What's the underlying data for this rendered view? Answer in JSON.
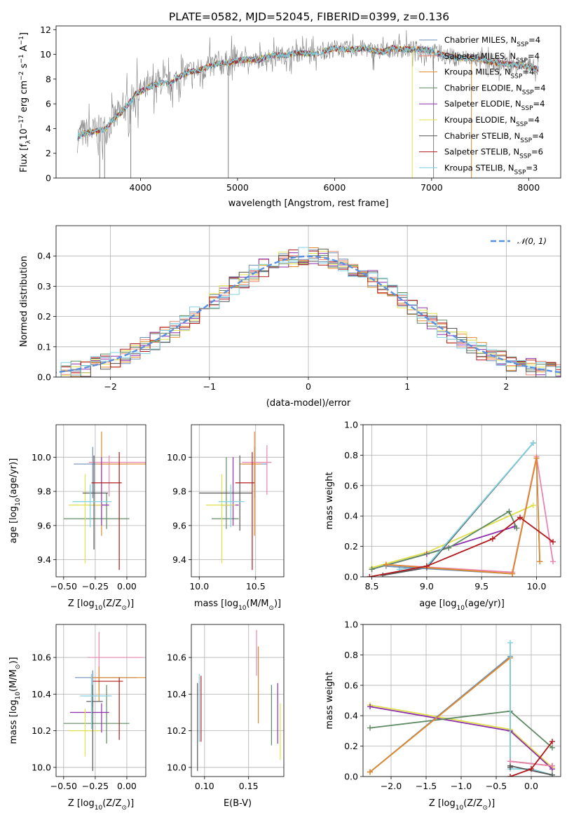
{
  "figure": {
    "title": "PLATE=0582, MJD=52045, FIBERID=0399, z=0.136"
  },
  "colors": {
    "Chabrier MILES": "#6b8fb9",
    "Salpeter MILES": "#ee8873",
    "Kroupa MILES": "#e0892a",
    "Chabrier ELODIE": "#5e8a63",
    "Salpeter ELODIE": "#8d2fab",
    "Kroupa ELODIE": "#dfe04a",
    "Chabrier STELIB": "#555555",
    "Salpeter STELIB": "#b2181b",
    "Kroupa STELIB": "#7fd0e0",
    "pink": "#e884b0"
  },
  "chart_data": [
    {
      "id": "spectrum",
      "type": "line",
      "title": "PLATE=0582, MJD=52045, FIBERID=0399, z=0.136",
      "xlabel": "wavelength [Angstrom, rest frame]",
      "ylabel_main": "Flux [f",
      "ylabel_rest": "10",
      "ylabel_exp": "−17",
      "ylabel_tail": " erg cm",
      "ylabel_exp2": "−2",
      "ylabel_tail2": " s",
      "ylabel_exp3": "−1",
      "ylabel_tail3": " A",
      "ylabel_exp4": "−1",
      "ylabel_end": "]",
      "xlim": [
        3130,
        8330
      ],
      "ylim": [
        0,
        12.3
      ],
      "xticks": [
        "4000",
        "5000",
        "6000",
        "7000",
        "8000"
      ],
      "yticks": [
        "0",
        "2",
        "4",
        "6",
        "8",
        "10",
        "12"
      ],
      "legend_position": "right",
      "legend": [
        {
          "name": "Chabrier MILES",
          "nssp": "4"
        },
        {
          "name": "Salpeter MILES",
          "nssp": "4"
        },
        {
          "name": "Kroupa MILES",
          "nssp": "4"
        },
        {
          "name": "Chabrier ELODIE",
          "nssp": "4"
        },
        {
          "name": "Salpeter ELODIE",
          "nssp": "4"
        },
        {
          "name": "Kroupa ELODIE",
          "nssp": "4"
        },
        {
          "name": "Chabrier STELIB",
          "nssp": "4"
        },
        {
          "name": "Salpeter STELIB",
          "nssp": "6"
        },
        {
          "name": "Kroupa STELIB",
          "nssp": "3"
        }
      ],
      "model_x": [
        3350,
        3400,
        3500,
        3600,
        3650,
        3700,
        3800,
        3900,
        3950,
        4000,
        4100,
        4200,
        4300,
        4400,
        4500,
        4600,
        4700,
        4800,
        4900,
        5000,
        5100,
        5200,
        5300,
        5400,
        5500,
        5600,
        5700,
        5800,
        5900,
        6000,
        6100,
        6200,
        6300,
        6400,
        6500,
        6600,
        6700,
        6800,
        6900,
        7000,
        7100,
        7200,
        7300,
        7400,
        7500,
        7600,
        7700,
        7800,
        7900,
        8000,
        8100
      ],
      "model_y": [
        3.3,
        3.6,
        3.7,
        3.9,
        4.0,
        4.6,
        5.3,
        6.2,
        6.8,
        7.0,
        7.4,
        7.7,
        7.6,
        8.2,
        8.6,
        8.7,
        9.0,
        9.3,
        9.3,
        9.5,
        9.6,
        9.5,
        9.8,
        10.0,
        9.9,
        10.1,
        10.1,
        10.0,
        10.3,
        10.5,
        10.4,
        10.4,
        10.5,
        10.3,
        10.2,
        10.5,
        10.4,
        10.4,
        10.4,
        10.3,
        10.0,
        9.8,
        9.7,
        9.7,
        9.6,
        9.4,
        9.3,
        9.2,
        9.1,
        9.0,
        8.8
      ],
      "data_sample_step": 5,
      "data_noise": 1.2
    },
    {
      "id": "residuals",
      "type": "step",
      "xlabel": "(data-model)/error",
      "ylabel": "Normed distribution",
      "xlim": [
        -2.55,
        2.55
      ],
      "ylim": [
        0,
        0.5
      ],
      "xticks": [
        "−2",
        "−1",
        "0",
        "1",
        "2"
      ],
      "xtick_values": [
        -2,
        -1,
        0,
        1,
        2
      ],
      "yticks": [
        "0.0",
        "0.1",
        "0.2",
        "0.3",
        "0.4"
      ],
      "ytick_values": [
        0,
        0.1,
        0.2,
        0.3,
        0.4
      ],
      "bin_width": 0.1,
      "legend": "𝒩(0, 1)",
      "gaussian_color": "#5a8fe0"
    },
    {
      "id": "age_vs_Z",
      "type": "errorbar",
      "xlabel": "Z [log",
      "xlabel_sub": "10",
      "xlabel_rest": "(Z/Z",
      "xlabel_end": ")]",
      "ylabel": "age  [log",
      "ylabel_sub": "10",
      "ylabel_rest": "(age/yr)]",
      "xlim": [
        -0.56,
        0.15
      ],
      "ylim": [
        9.3,
        10.19
      ],
      "xticks": [
        "−0.50",
        "−0.25",
        "0.00"
      ],
      "xtick_values": [
        -0.5,
        -0.25,
        0
      ],
      "yticks": [
        "9.4",
        "9.6",
        "9.8",
        "10.0"
      ],
      "ytick_values": [
        9.4,
        9.6,
        9.8,
        10.0
      ],
      "points": [
        {
          "c": "Chabrier MILES",
          "x": -0.27,
          "xe": [
            0.15,
            0.26
          ],
          "y": 9.96,
          "ye": [
            0.2,
            0.1
          ]
        },
        {
          "c": "pink",
          "x": -0.14,
          "xe": [
            0.16,
            0.3
          ],
          "y": 9.97,
          "ye": [
            0.2,
            0.04
          ]
        },
        {
          "c": "Kroupa MILES",
          "x": -0.2,
          "xe": [
            0.04,
            0.35
          ],
          "y": 9.96,
          "ye": [
            0.42,
            0.19
          ]
        },
        {
          "c": "Chabrier ELODIE",
          "x": -0.16,
          "xe": [
            0.34,
            0.18
          ],
          "y": 9.64,
          "ye": [
            0.06,
            0.15
          ]
        },
        {
          "c": "Salpeter ELODIE",
          "x": -0.2,
          "xe": [
            0.1,
            0.06
          ],
          "y": 9.72,
          "ye": [
            0.12,
            0.28
          ]
        },
        {
          "c": "Kroupa ELODIE",
          "x": -0.33,
          "xe": [
            0.13,
            0.13
          ],
          "y": 9.72,
          "ye": [
            0.34,
            0.18
          ]
        },
        {
          "c": "Chabrier STELIB",
          "x": -0.26,
          "xe": [
            0.09,
            0.11
          ],
          "y": 9.79,
          "ye": [
            0.33,
            0.22
          ]
        },
        {
          "c": "Salpeter STELIB",
          "x": -0.06,
          "xe": [
            0.22,
            0.02
          ],
          "y": 9.85,
          "ye": [
            0.51,
            0.18
          ]
        },
        {
          "c": "Kroupa STELIB",
          "x": -0.29,
          "xe": [
            0.14,
            0.17
          ],
          "y": 9.74,
          "ye": [
            0.15,
            0.1
          ]
        }
      ]
    },
    {
      "id": "age_vs_mass",
      "type": "errorbar",
      "xlabel": "mass [log",
      "xlabel_sub": "10",
      "xlabel_rest": "(M/M",
      "xlabel_end": ")]",
      "xlim": [
        9.93,
        10.75
      ],
      "ylim": [
        9.3,
        10.19
      ],
      "xticks": [
        "10.0",
        "10.5"
      ],
      "xtick_values": [
        10.0,
        10.5
      ],
      "yticks": [
        "9.4",
        "9.6",
        "9.8",
        "10.0"
      ],
      "ytick_values": [
        9.4,
        9.6,
        9.8,
        10.0
      ],
      "points": [
        {
          "c": "Chabrier MILES",
          "x": 10.49,
          "xe": [
            0.11,
            0.11
          ],
          "y": 9.96,
          "ye": [
            0.2,
            0.1
          ]
        },
        {
          "c": "pink",
          "x": 10.6,
          "xe": [
            0.22,
            0.04
          ],
          "y": 9.97,
          "ye": [
            0.19,
            0.1
          ]
        },
        {
          "c": "Kroupa MILES",
          "x": 10.49,
          "xe": [
            0.13,
            0.06
          ],
          "y": 9.96,
          "ye": [
            0.42,
            0.19
          ]
        },
        {
          "c": "Chabrier ELODIE",
          "x": 10.24,
          "xe": [
            0.13,
            0.11
          ],
          "y": 9.64,
          "ye": [
            0.06,
            0.36
          ]
        },
        {
          "c": "Salpeter ELODIE",
          "x": 10.3,
          "xe": [
            0.11,
            0.05
          ],
          "y": 9.72,
          "ye": [
            0.12,
            0.28
          ]
        },
        {
          "c": "Kroupa ELODIE",
          "x": 10.2,
          "xe": [
            0.14,
            0.12
          ],
          "y": 9.72,
          "ye": [
            0.34,
            0.18
          ]
        },
        {
          "c": "Chabrier STELIB",
          "x": 10.36,
          "xe": [
            0.36,
            0.11
          ],
          "y": 9.79,
          "ye": [
            0.22,
            0.22
          ]
        },
        {
          "c": "Salpeter STELIB",
          "x": 10.47,
          "xe": [
            0.15,
            0.02
          ],
          "y": 9.85,
          "ye": [
            0.51,
            0.18
          ]
        },
        {
          "c": "Kroupa STELIB",
          "x": 10.28,
          "xe": [
            0.11,
            0.12
          ],
          "y": 9.74,
          "ye": [
            0.15,
            0.1
          ]
        }
      ]
    },
    {
      "id": "weight_vs_age",
      "type": "line",
      "xlabel": "age  [log",
      "xlabel_sub": "10",
      "xlabel_rest": "(age/yr)]",
      "ylabel": "mass weight",
      "xlim": [
        8.42,
        10.22
      ],
      "ylim": [
        0,
        1
      ],
      "xticks": [
        "8.5",
        "9.0",
        "9.5",
        "10.0"
      ],
      "xtick_values": [
        8.5,
        9.0,
        9.5,
        10.0
      ],
      "yticks": [
        "0.0",
        "0.2",
        "0.4",
        "0.6",
        "0.8",
        "1.0"
      ],
      "ytick_values": [
        0,
        0.2,
        0.4,
        0.6,
        0.8,
        1.0
      ],
      "series": [
        {
          "c": "Kroupa ELODIE",
          "x": [
            8.5,
            9.0,
            9.97
          ],
          "y": [
            0.06,
            0.16,
            0.47
          ]
        },
        {
          "c": "Salpeter ELODIE",
          "x": [
            8.5,
            9.0,
            9.8
          ],
          "y": [
            0.05,
            0.15,
            0.33
          ]
        },
        {
          "c": "Chabrier ELODIE",
          "x": [
            8.5,
            9.2,
            9.75,
            9.82
          ],
          "y": [
            0.05,
            0.19,
            0.43,
            0.32
          ]
        },
        {
          "c": "Chabrier STELIB",
          "x": [
            8.6,
            9.0,
            9.97
          ],
          "y": [
            0.01,
            0.06,
            0.88
          ]
        },
        {
          "c": "Kroupa STELIB",
          "x": [
            8.75,
            9.0,
            9.97
          ],
          "y": [
            0.05,
            0.07,
            0.88
          ]
        },
        {
          "c": "Chabrier MILES",
          "x": [
            8.63,
            9.78,
            10.0,
            10.03
          ],
          "y": [
            0.07,
            0.02,
            0.78,
            0.1
          ]
        },
        {
          "c": "pink",
          "x": [
            8.63,
            9.78,
            10.0,
            10.15
          ],
          "y": [
            0.08,
            0.03,
            0.79,
            0.1
          ]
        },
        {
          "c": "Kroupa MILES",
          "x": [
            8.63,
            9.78,
            10.0,
            10.03
          ],
          "y": [
            0.08,
            0.02,
            0.78,
            0.1
          ]
        },
        {
          "c": "Salpeter STELIB",
          "x": [
            8.48,
            9.0,
            9.6,
            9.85,
            10.15
          ],
          "y": [
            0.0,
            0.07,
            0.25,
            0.39,
            0.23
          ]
        }
      ]
    },
    {
      "id": "mass_vs_Z",
      "type": "errorbar",
      "xlabel": "Z [log",
      "xlabel_sub": "10",
      "xlabel_rest": "(Z/Z",
      "xlabel_end": ")]",
      "ylabel": "mass [log",
      "ylabel_sub": "10",
      "ylabel_rest": "(M/M",
      "ylabel_end": ")]",
      "xlim": [
        -0.56,
        0.15
      ],
      "ylim": [
        9.95,
        10.78
      ],
      "xticks": [
        "−0.50",
        "−0.25",
        "0.00"
      ],
      "xtick_values": [
        -0.5,
        -0.25,
        0
      ],
      "yticks": [
        "10.0",
        "10.2",
        "10.4",
        "10.6"
      ],
      "ytick_values": [
        10.0,
        10.2,
        10.4,
        10.6
      ],
      "points": [
        {
          "c": "Chabrier MILES",
          "x": -0.27,
          "xe": [
            0.14,
            0.35
          ],
          "y": 10.49,
          "ye": [
            0.16,
            0.04
          ]
        },
        {
          "c": "pink",
          "x": -0.22,
          "xe": [
            0.09,
            0.35
          ],
          "y": 10.6,
          "ye": [
            0.18,
            0.14
          ]
        },
        {
          "c": "Kroupa MILES",
          "x": -0.22,
          "xe": [
            0.06,
            0.38
          ],
          "y": 10.49,
          "ye": [
            0.13,
            0.06
          ]
        },
        {
          "c": "Chabrier ELODIE",
          "x": -0.16,
          "xe": [
            0.34,
            0.18
          ],
          "y": 10.24,
          "ye": [
            0.11,
            0.21
          ]
        },
        {
          "c": "Salpeter ELODIE",
          "x": -0.2,
          "xe": [
            0.25,
            0.06
          ],
          "y": 10.3,
          "ye": [
            0.11,
            0.05
          ]
        },
        {
          "c": "Kroupa ELODIE",
          "x": -0.33,
          "xe": [
            0.13,
            0.12
          ],
          "y": 10.2,
          "ye": [
            0.14,
            0.12
          ]
        },
        {
          "c": "Chabrier STELIB",
          "x": -0.27,
          "xe": [
            0.05,
            0.08
          ],
          "y": 10.36,
          "ye": [
            0.38,
            0.09
          ]
        },
        {
          "c": "Salpeter STELIB",
          "x": -0.06,
          "xe": [
            0.21,
            0.03
          ],
          "y": 10.47,
          "ye": [
            0.32,
            0.02
          ]
        },
        {
          "c": "Kroupa STELIB",
          "x": -0.28,
          "xe": [
            0.09,
            0.16
          ],
          "y": 10.39,
          "ye": [
            0.18,
            0.12
          ]
        }
      ]
    },
    {
      "id": "mass_vs_ebv",
      "type": "errorbar",
      "xlabel": "E(B-V)",
      "xlim": [
        0.085,
        0.19
      ],
      "ylim": [
        9.95,
        10.78
      ],
      "xticks": [
        "0.10",
        "0.15"
      ],
      "xtick_values": [
        0.1,
        0.15
      ],
      "yticks": [
        "10.0",
        "10.2",
        "10.4",
        "10.6"
      ],
      "ytick_values": [
        10.0,
        10.2,
        10.4,
        10.6
      ],
      "points": [
        {
          "c": "Chabrier STELIB",
          "x": 0.092,
          "y": 10.2,
          "ye": [
            0.22,
            0.26
          ]
        },
        {
          "c": "Kroupa STELIB",
          "x": 0.094,
          "y": 10.38,
          "ye": [
            0.24,
            0.13
          ]
        },
        {
          "c": "Salpeter STELIB",
          "x": 0.096,
          "y": 10.33,
          "ye": [
            0.19,
            0.17
          ]
        },
        {
          "c": "pink",
          "x": 0.159,
          "y": 10.62,
          "ye": [
            0.12,
            0.13
          ]
        },
        {
          "c": "Kroupa MILES",
          "x": 0.161,
          "y": 10.45,
          "ye": [
            0.21,
            0.21
          ]
        },
        {
          "c": "Chabrier ELODIE",
          "x": 0.176,
          "y": 10.29,
          "ye": [
            0.17,
            0.16
          ]
        },
        {
          "c": "Salpeter ELODIE",
          "x": 0.183,
          "y": 10.25,
          "ye": [
            0.12,
            0.21
          ]
        },
        {
          "c": "Kroupa ELODIE",
          "x": 0.186,
          "y": 10.17,
          "ye": [
            0.13,
            0.18
          ]
        }
      ]
    },
    {
      "id": "weight_vs_Z",
      "type": "line",
      "xlabel": "Z [log",
      "xlabel_sub": "10",
      "xlabel_rest": "(Z/Z",
      "xlabel_end": ")]",
      "ylabel": "mass weight",
      "xlim": [
        -2.4,
        0.42
      ],
      "ylim": [
        0,
        1
      ],
      "xticks": [
        "−2.0",
        "−1.5",
        "−1.0",
        "−0.5",
        "0.0"
      ],
      "xtick_values": [
        -2.0,
        -1.5,
        -1.0,
        -0.5,
        0.0
      ],
      "yticks": [
        "0.0",
        "0.2",
        "0.4",
        "0.6",
        "0.8",
        "1.0"
      ],
      "ytick_values": [
        0,
        0.2,
        0.4,
        0.6,
        0.8,
        1.0
      ],
      "series": [
        {
          "c": "Kroupa ELODIE",
          "x": [
            -2.3,
            -0.3,
            0.3
          ],
          "y": [
            0.47,
            0.31,
            0.06
          ]
        },
        {
          "c": "Salpeter ELODIE",
          "x": [
            -2.3,
            -0.3,
            0.3
          ],
          "y": [
            0.46,
            0.3,
            0.05
          ]
        },
        {
          "c": "Chabrier ELODIE",
          "x": [
            -2.3,
            -0.3,
            0.3
          ],
          "y": [
            0.32,
            0.43,
            0.19
          ]
        },
        {
          "c": "Chabrier MILES",
          "x": [
            -2.3,
            -0.3,
            -0.3,
            0.3
          ],
          "y": [
            0.03,
            0.79,
            0.1,
            0.07
          ]
        },
        {
          "c": "Kroupa MILES",
          "x": [
            -2.3,
            -0.3,
            -0.3,
            0.3
          ],
          "y": [
            0.03,
            0.78,
            0.1,
            0.07
          ]
        },
        {
          "c": "Kroupa STELIB",
          "x": [
            -0.3,
            -0.3,
            0.0,
            0.3
          ],
          "y": [
            0.88,
            0.05,
            0.05,
            0.01
          ]
        },
        {
          "c": "Chabrier STELIB",
          "x": [
            -0.3,
            -0.3,
            0.3
          ],
          "y": [
            0.06,
            0.07,
            0.01
          ]
        },
        {
          "c": "pink",
          "x": [
            -0.3,
            0.3
          ],
          "y": [
            0.1,
            0.07
          ]
        },
        {
          "c": "Salpeter STELIB",
          "x": [
            -0.3,
            0.0,
            0.3
          ],
          "y": [
            0.0,
            0.05,
            0.23
          ]
        }
      ]
    }
  ]
}
